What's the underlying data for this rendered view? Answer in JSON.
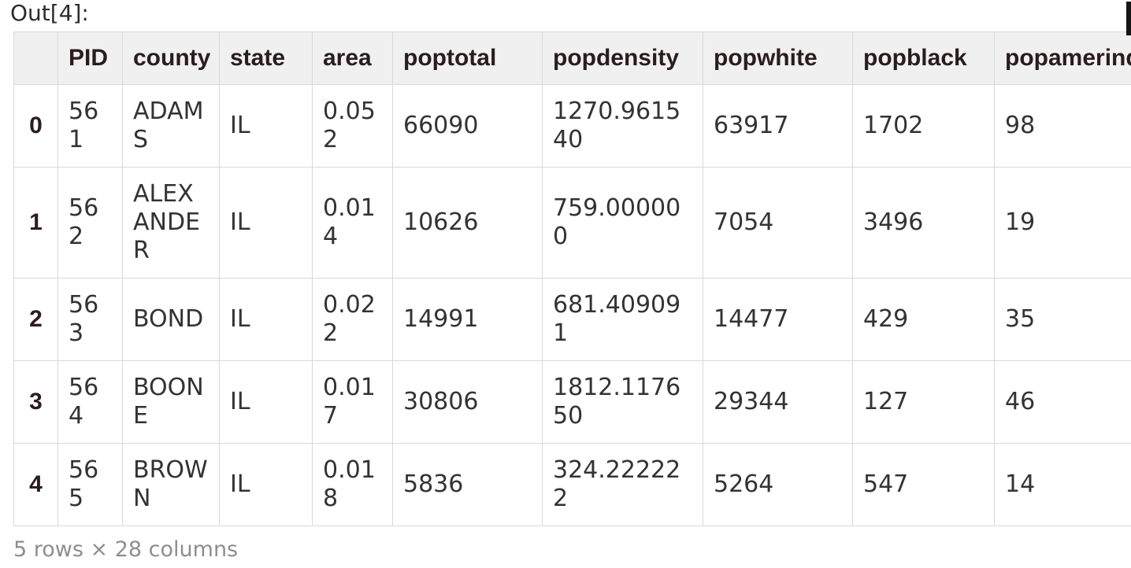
{
  "prompt": "Out[4]:",
  "table": {
    "columns": [
      "",
      "PID",
      "county",
      "state",
      "area",
      "poptotal",
      "popdensity",
      "popwhite",
      "popblack",
      "popamerind"
    ],
    "rows": [
      {
        "index": "0",
        "cells": [
          "561",
          "ADAMS",
          "IL",
          "0.052",
          "66090",
          "1270.961540",
          "63917",
          "1702",
          "98"
        ]
      },
      {
        "index": "1",
        "cells": [
          "562",
          "ALEXANDER",
          "IL",
          "0.014",
          "10626",
          "759.000000",
          "7054",
          "3496",
          "19"
        ]
      },
      {
        "index": "2",
        "cells": [
          "563",
          "BOND",
          "IL",
          "0.022",
          "14991",
          "681.409091",
          "14477",
          "429",
          "35"
        ]
      },
      {
        "index": "3",
        "cells": [
          "564",
          "BOONE",
          "IL",
          "0.017",
          "30806",
          "1812.117650",
          "29344",
          "127",
          "46"
        ]
      },
      {
        "index": "4",
        "cells": [
          "565",
          "BROWN",
          "IL",
          "0.018",
          "5836",
          "324.222222",
          "5264",
          "547",
          "14"
        ]
      }
    ],
    "summary": "5 rows × 28 columns"
  },
  "colors": {
    "header_bg": "#f1f0f0",
    "border": "#d9d9d9",
    "header_text": "#2a1d1e",
    "body_text": "#343234",
    "summary_text": "#8e8e8e",
    "page_bg": "#ffffff"
  }
}
